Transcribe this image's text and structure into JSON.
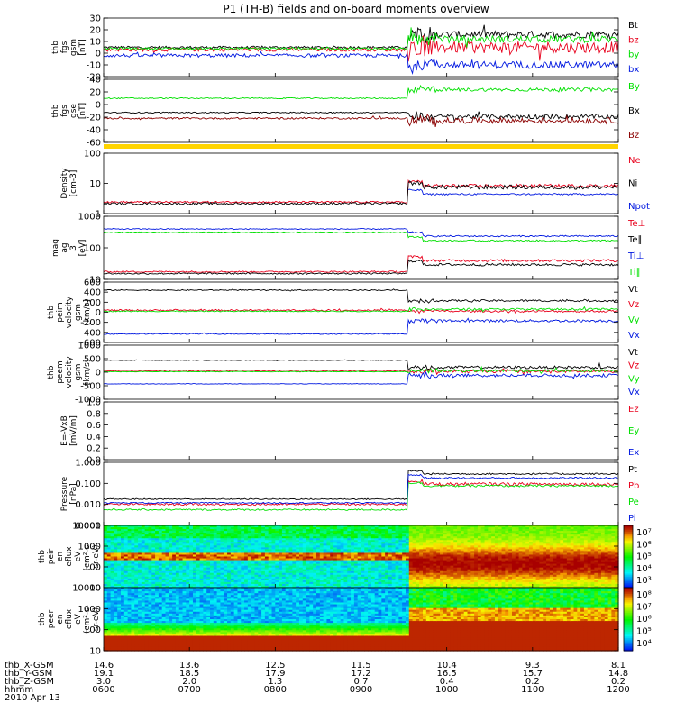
{
  "title": "P1 (TH-B) fields and on-board moments overview",
  "date_label": "2010 Apr 13",
  "colors": {
    "black": "#000000",
    "red": "#e8001c",
    "green": "#00e000",
    "blue": "#0018e0",
    "darkred": "#8b0000"
  },
  "x_axis": {
    "row_labels": [
      "thb_X-GSM",
      "thb_Y-GSM",
      "thb_Z-GSM",
      "hhmm"
    ],
    "columns": [
      {
        "values": [
          "14.6",
          "19.1",
          "3.0",
          "0600"
        ]
      },
      {
        "values": [
          "13.6",
          "18.5",
          "2.0",
          "0700"
        ]
      },
      {
        "values": [
          "12.5",
          "17.9",
          "1.3",
          "0800"
        ]
      },
      {
        "values": [
          "11.5",
          "17.2",
          "0.7",
          "0900"
        ]
      },
      {
        "values": [
          "10.4",
          "16.5",
          "0.4",
          "1000"
        ]
      },
      {
        "values": [
          "9.3",
          "15.7",
          "0.2",
          "1100"
        ]
      },
      {
        "values": [
          "8.1",
          "14.8",
          "0.2",
          "1200"
        ]
      }
    ]
  },
  "chart_data": [
    {
      "type": "line",
      "ylabel": [
        "thb",
        "fgs",
        "gsm",
        "[nT]"
      ],
      "ylim": [
        -20,
        30
      ],
      "y_ticks": [
        "30",
        "20",
        "10",
        "0",
        "-10",
        "-20"
      ],
      "series": [
        {
          "name": "Bt",
          "color": "#000000",
          "pre": 5,
          "post": 16,
          "pre_noise": 1,
          "post_noise": 3
        },
        {
          "name": "bz",
          "color": "#e8001c",
          "pre": 3,
          "post": 5,
          "pre_noise": 1.5,
          "post_noise": 5
        },
        {
          "name": "by",
          "color": "#00e000",
          "pre": 4,
          "post": 12,
          "pre_noise": 1,
          "post_noise": 3
        },
        {
          "name": "bx",
          "color": "#0018e0",
          "pre": -2,
          "post": -10,
          "pre_noise": 1.5,
          "post_noise": 3
        }
      ]
    },
    {
      "type": "line",
      "ylabel": [
        "thb",
        "fgs",
        "gse",
        "[nT]"
      ],
      "ylim": [
        -70,
        40
      ],
      "y_ticks": [
        "40",
        "20",
        "0",
        "-20",
        "-40",
        "-60"
      ],
      "series": [
        {
          "name": "By",
          "color": "#00e000",
          "pre": 7,
          "post": 22,
          "pre_noise": 1,
          "post_noise": 3
        },
        {
          "name": "Bx",
          "color": "#000000",
          "pre": -18,
          "post": -25,
          "pre_noise": 1,
          "post_noise": 4
        },
        {
          "name": "Bz",
          "color": "#8b0000",
          "pre": -28,
          "post": -32,
          "pre_noise": 1.5,
          "post_noise": 5
        }
      ]
    },
    {
      "type": "line",
      "log": true,
      "ylabel": [
        "Density",
        "[cm-3]"
      ],
      "ylim": [
        1,
        150
      ],
      "y_ticks": [
        "100",
        "10",
        "1"
      ],
      "series": [
        {
          "name": "Ne",
          "color": "#e8001c",
          "pre": 2.6,
          "post": 10,
          "pre_noise": 0.03,
          "post_noise": 0.06
        },
        {
          "name": "Ni",
          "color": "#000000",
          "pre": 2.3,
          "post": 9,
          "pre_noise": 0.04,
          "post_noise": 0.08
        },
        {
          "name": "Npot",
          "color": "#0018e0",
          "pre": null,
          "post": 5,
          "pre_noise": 0,
          "post_noise": 0.03
        }
      ]
    },
    {
      "type": "line",
      "log": true,
      "ylabel": [
        "mag",
        "ag",
        "3",
        "[eV]"
      ],
      "ylim": [
        10,
        3000
      ],
      "y_ticks": [
        "1000",
        "100",
        "10"
      ],
      "series": [
        {
          "name": "Te⊥",
          "color": "#e8001c",
          "pre": 20,
          "post": 55,
          "pre_noise": 0.03,
          "post_noise": 0.05
        },
        {
          "name": "Te∥",
          "color": "#000000",
          "pre": 17,
          "post": 38,
          "pre_noise": 0.03,
          "post_noise": 0.05
        },
        {
          "name": "Ti⊥",
          "color": "#0018e0",
          "pre": 950,
          "post": 500,
          "pre_noise": 0.02,
          "post_noise": 0.03
        },
        {
          "name": "Ti∥",
          "color": "#00e000",
          "pre": 700,
          "post": 330,
          "pre_noise": 0.02,
          "post_noise": 0.03
        }
      ]
    },
    {
      "type": "line",
      "ylabel": [
        "thb",
        "peim",
        "velocity",
        "gsm",
        "[km/s]"
      ],
      "ylim": [
        -600,
        600
      ],
      "y_ticks": [
        "600",
        "400",
        "200",
        "0",
        "-200",
        "-400",
        "-600"
      ],
      "series": [
        {
          "name": "Vt",
          "color": "#000000",
          "pre": 440,
          "post": 230,
          "pre_noise": 10,
          "post_noise": 20
        },
        {
          "name": "Vz",
          "color": "#e8001c",
          "pre": 40,
          "post": 20,
          "pre_noise": 15,
          "post_noise": 20
        },
        {
          "name": "Vy",
          "color": "#00e000",
          "pre": 20,
          "post": 60,
          "pre_noise": 10,
          "post_noise": 20
        },
        {
          "name": "Vx",
          "color": "#0018e0",
          "pre": -430,
          "post": -170,
          "pre_noise": 10,
          "post_noise": 25
        }
      ]
    },
    {
      "type": "line",
      "ylabel": [
        "thb",
        "peem",
        "velocity",
        "gsm",
        "[km/s]"
      ],
      "ylim": [
        -1000,
        1000
      ],
      "y_ticks": [
        "1000",
        "500",
        "0",
        "-500",
        "-1000"
      ],
      "series": [
        {
          "name": "Vt",
          "color": "#000000",
          "pre": 440,
          "post": 180,
          "pre_noise": 10,
          "post_noise": 50
        },
        {
          "name": "Vz",
          "color": "#e8001c",
          "pre": 40,
          "post": 30,
          "pre_noise": 15,
          "post_noise": 50
        },
        {
          "name": "Vy",
          "color": "#00e000",
          "pre": 20,
          "post": 60,
          "pre_noise": 10,
          "post_noise": 50
        },
        {
          "name": "Vx",
          "color": "#0018e0",
          "pre": -430,
          "post": -120,
          "pre_noise": 10,
          "post_noise": 60
        }
      ]
    },
    {
      "type": "line",
      "ylabel": [
        "E=-VxB",
        "[mV/m]"
      ],
      "ylim": [
        0,
        1
      ],
      "y_ticks": [
        "1.0",
        "0.8",
        "0.6",
        "0.4",
        "0.2",
        "0.0"
      ],
      "series": [
        {
          "name": "Ez",
          "color": "#e8001c",
          "pre": null,
          "post": null,
          "pre_noise": 0,
          "post_noise": 0
        },
        {
          "name": "Ey",
          "color": "#00e000",
          "pre": null,
          "post": null,
          "pre_noise": 0,
          "post_noise": 0
        },
        {
          "name": "Ex",
          "color": "#0018e0",
          "pre": null,
          "post": null,
          "pre_noise": 0,
          "post_noise": 0
        }
      ]
    },
    {
      "type": "line",
      "log": true,
      "ylabel": [
        "Pressure",
        "[nPa]"
      ],
      "ylim": [
        0.001,
        1.3
      ],
      "y_ticks": [
        "1.000",
        "0.100",
        "0.010",
        "0.001"
      ],
      "series": [
        {
          "name": "Pt",
          "color": "#000000",
          "pre": 0.02,
          "post": 0.35,
          "pre_noise": 0.03,
          "post_noise": 0.04
        },
        {
          "name": "Pb",
          "color": "#e8001c",
          "pre": 0.011,
          "post": 0.11,
          "pre_noise": 0.05,
          "post_noise": 0.08
        },
        {
          "name": "Pe",
          "color": "#00e000",
          "pre": 0.006,
          "post": 0.09,
          "pre_noise": 0.04,
          "post_noise": 0.05
        },
        {
          "name": "Pi",
          "color": "#0018e0",
          "pre": 0.013,
          "post": 0.22,
          "pre_noise": 0.03,
          "post_noise": 0.04
        }
      ]
    },
    {
      "type": "heatmap",
      "ylabel": [
        "thb",
        "peir",
        "en",
        "eflux",
        "eV",
        "(cm²-s-",
        "sr-eV)"
      ],
      "ylim": [
        10,
        20000
      ],
      "y_ticks": [
        "10000",
        "1000",
        "100",
        "10"
      ],
      "colorbar_ticks": [
        "10⁷",
        "10⁶",
        "10⁵",
        "10⁴",
        "10³"
      ]
    },
    {
      "type": "heatmap",
      "ylabel": [
        "thb",
        "peer",
        "en",
        "eflux",
        "eV",
        "(cm²-s-",
        "sr-eV)"
      ],
      "ylim": [
        10,
        20000
      ],
      "y_ticks": [
        "10000",
        "1000",
        "100",
        "10"
      ],
      "colorbar_ticks": [
        "10⁸",
        "10⁷",
        "10⁶",
        "10⁵",
        "10⁴"
      ]
    }
  ]
}
